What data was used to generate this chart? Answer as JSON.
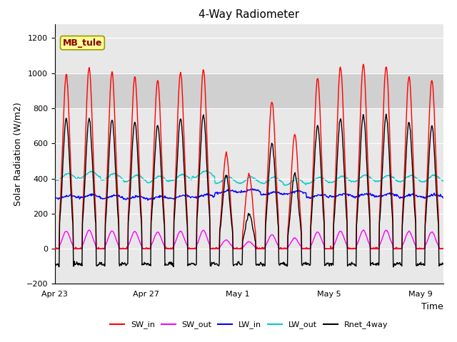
{
  "title": "4-Way Radiometer",
  "xlabel": "Time",
  "ylabel": "Solar Radiation (W/m2)",
  "station_label": "MB_tule",
  "ylim": [
    -200,
    1280
  ],
  "yticks": [
    -200,
    0,
    200,
    400,
    600,
    800,
    1000,
    1200
  ],
  "shade_ymin": 800,
  "shade_ymax": 1000,
  "xtick_labels": [
    "Apr 23",
    "Apr 27",
    "May 1",
    "May 5",
    "May 9"
  ],
  "xtick_positions": [
    0,
    4,
    8,
    12,
    16
  ],
  "n_days": 17,
  "lines": {
    "SW_in": {
      "color": "#ff0000",
      "lw": 1.0
    },
    "SW_out": {
      "color": "#ff00ff",
      "lw": 1.0
    },
    "LW_in": {
      "color": "#0000ff",
      "lw": 1.0
    },
    "LW_out": {
      "color": "#00cccc",
      "lw": 1.0
    },
    "Rnet_4way": {
      "color": "#000000",
      "lw": 1.0
    }
  },
  "background_color": "#ffffff",
  "plot_bg_color": "#e8e8e8",
  "shade_color": "#d0d0d0",
  "grid_color": "#ffffff",
  "station_box_facecolor": "#ffff99",
  "station_box_edgecolor": "#999900",
  "station_text_color": "#880000",
  "title_fontsize": 11,
  "axis_label_fontsize": 9,
  "tick_fontsize": 8,
  "legend_fontsize": 8,
  "station_fontsize": 9
}
